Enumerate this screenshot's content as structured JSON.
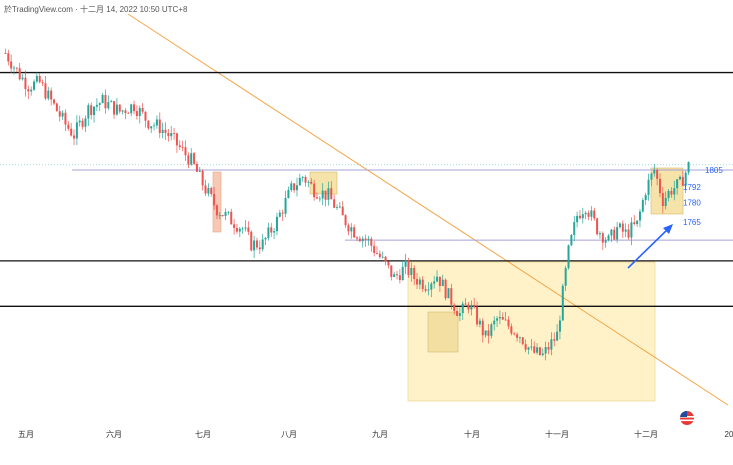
{
  "header": {
    "text": "於TradingView.com · 十二月 14, 2022 10:50 UTC+8"
  },
  "chart_data": {
    "type": "candlestick",
    "x_ticks": [
      "五月",
      "六月",
      "七月",
      "八月",
      "九月",
      "十月",
      "十一月",
      "十二月",
      "20"
    ],
    "price_labels": [
      {
        "value": 1805,
        "text": "1805"
      },
      {
        "value": 1792,
        "text": "1792"
      },
      {
        "value": 1780,
        "text": "1780"
      },
      {
        "value": 1765,
        "text": "1765"
      }
    ],
    "horizontal_levels": [
      1880,
      1805,
      1751,
      1735,
      1700
    ],
    "ylim": [
      1614,
      1922
    ],
    "close_path": [
      [
        0,
        1895
      ],
      [
        5,
        1878
      ],
      [
        8,
        1870
      ],
      [
        12,
        1872
      ],
      [
        16,
        1858
      ],
      [
        21,
        1840
      ],
      [
        24,
        1832
      ],
      [
        29,
        1852
      ],
      [
        34,
        1858
      ],
      [
        40,
        1850
      ],
      [
        45,
        1855
      ],
      [
        50,
        1842
      ],
      [
        54,
        1838
      ],
      [
        58,
        1830
      ],
      [
        61,
        1822
      ],
      [
        65,
        1812
      ],
      [
        70,
        1790
      ],
      [
        74,
        1775
      ],
      [
        78,
        1768
      ],
      [
        83,
        1760
      ],
      [
        86,
        1748
      ],
      [
        90,
        1748
      ],
      [
        95,
        1766
      ],
      [
        100,
        1790
      ],
      [
        104,
        1800
      ],
      [
        108,
        1790
      ],
      [
        113,
        1785
      ],
      [
        118,
        1768
      ],
      [
        122,
        1758
      ],
      [
        127,
        1750
      ],
      [
        131,
        1738
      ],
      [
        136,
        1722
      ],
      [
        140,
        1730
      ],
      [
        143,
        1722
      ],
      [
        147,
        1717
      ],
      [
        151,
        1724
      ],
      [
        155,
        1708
      ],
      [
        159,
        1694
      ],
      [
        162,
        1702
      ],
      [
        165,
        1690
      ],
      [
        168,
        1676
      ],
      [
        172,
        1690
      ],
      [
        176,
        1685
      ],
      [
        180,
        1678
      ],
      [
        184,
        1665
      ],
      [
        188,
        1662
      ],
      [
        193,
        1678
      ],
      [
        197,
        1742
      ],
      [
        200,
        1770
      ],
      [
        203,
        1778
      ],
      [
        207,
        1760
      ],
      [
        211,
        1750
      ],
      [
        214,
        1760
      ],
      [
        217,
        1756
      ],
      [
        221,
        1763
      ],
      [
        224,
        1790
      ],
      [
        227,
        1805
      ],
      [
        230,
        1782
      ],
      [
        233,
        1790
      ],
      [
        236,
        1794
      ],
      [
        239,
        1808
      ]
    ]
  }
}
